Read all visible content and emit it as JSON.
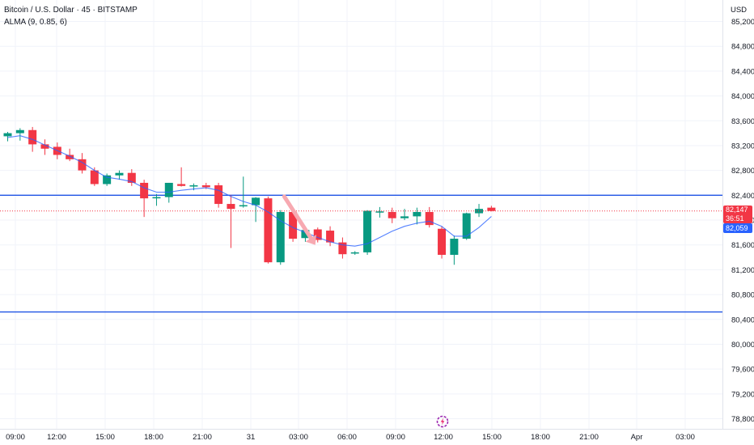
{
  "legend": {
    "title": "Bitcoin / U.S. Dollar · 45 · BITSTAMP",
    "indicator": "ALMA (9, 0.85, 6)"
  },
  "currency": "USD",
  "last_price": {
    "price": "82,147",
    "countdown": "36:51",
    "value": 82147
  },
  "alma_price": {
    "label": "82,059",
    "value": 82059
  },
  "colors": {
    "up": "#089981",
    "down": "#f23645",
    "alma": "#2962ff",
    "hline": "#1e53e5",
    "arrow": "#f7a9b1",
    "grid": "#f0f3fa",
    "text": "#131722"
  },
  "chart_data": {
    "type": "candlestick",
    "title": "Bitcoin / U.S. Dollar · 45 · BITSTAMP",
    "y_ticks": [
      85200,
      84800,
      84400,
      84000,
      83600,
      83200,
      82800,
      82400,
      82000,
      81600,
      81200,
      80800,
      80400,
      80000,
      79600,
      79200,
      78800
    ],
    "y_tick_labels": [
      "85,200",
      "84,800",
      "84,400",
      "84,000",
      "83,600",
      "83,200",
      "82,800",
      "82,400",
      "82,000",
      "81,600",
      "81,200",
      "80,800",
      "80,400",
      "80,000",
      "79,600",
      "79,200",
      "78,800"
    ],
    "x_tick_labels": [
      "09:00",
      "12:00",
      "15:00",
      "18:00",
      "21:00",
      "31",
      "03:00",
      "06:00",
      "09:00",
      "12:00",
      "15:00",
      "18:00",
      "21:00",
      "Apr",
      "03:00"
    ],
    "ylim": [
      78650,
      85350
    ],
    "horizontal_lines": [
      82400,
      80520
    ],
    "candles": [
      {
        "o": 83350,
        "h": 83420,
        "l": 83270,
        "c": 83400
      },
      {
        "o": 83400,
        "h": 83480,
        "l": 83280,
        "c": 83450
      },
      {
        "o": 83450,
        "h": 83500,
        "l": 83100,
        "c": 83220
      },
      {
        "o": 83220,
        "h": 83300,
        "l": 83050,
        "c": 83150
      },
      {
        "o": 83180,
        "h": 83250,
        "l": 82980,
        "c": 83050
      },
      {
        "o": 83050,
        "h": 83150,
        "l": 82950,
        "c": 82980
      },
      {
        "o": 82980,
        "h": 83080,
        "l": 82750,
        "c": 82800
      },
      {
        "o": 82800,
        "h": 82850,
        "l": 82550,
        "c": 82580
      },
      {
        "o": 82580,
        "h": 82750,
        "l": 82550,
        "c": 82720
      },
      {
        "o": 82720,
        "h": 82800,
        "l": 82650,
        "c": 82760
      },
      {
        "o": 82760,
        "h": 82820,
        "l": 82550,
        "c": 82600
      },
      {
        "o": 82600,
        "h": 82650,
        "l": 82050,
        "c": 82350
      },
      {
        "o": 82350,
        "h": 82420,
        "l": 82230,
        "c": 82370
      },
      {
        "o": 82370,
        "h": 82600,
        "l": 82280,
        "c": 82600
      },
      {
        "o": 82580,
        "h": 82850,
        "l": 82540,
        "c": 82550
      },
      {
        "o": 82550,
        "h": 82590,
        "l": 82480,
        "c": 82560
      },
      {
        "o": 82560,
        "h": 82600,
        "l": 82500,
        "c": 82530
      },
      {
        "o": 82560,
        "h": 82600,
        "l": 82200,
        "c": 82260
      },
      {
        "o": 82260,
        "h": 82400,
        "l": 81550,
        "c": 82180
      },
      {
        "o": 82230,
        "h": 82700,
        "l": 82200,
        "c": 82240
      },
      {
        "o": 82240,
        "h": 82370,
        "l": 81970,
        "c": 82360
      },
      {
        "o": 82350,
        "h": 82380,
        "l": 81300,
        "c": 81320
      },
      {
        "o": 81320,
        "h": 82160,
        "l": 81280,
        "c": 82130
      },
      {
        "o": 82130,
        "h": 82160,
        "l": 81650,
        "c": 81700
      },
      {
        "o": 81710,
        "h": 81880,
        "l": 81650,
        "c": 81840
      },
      {
        "o": 81850,
        "h": 81880,
        "l": 81640,
        "c": 81680
      },
      {
        "o": 81830,
        "h": 81900,
        "l": 81580,
        "c": 81640
      },
      {
        "o": 81640,
        "h": 81720,
        "l": 81380,
        "c": 81450
      },
      {
        "o": 81470,
        "h": 81500,
        "l": 81440,
        "c": 81480
      },
      {
        "o": 81480,
        "h": 82160,
        "l": 81440,
        "c": 82150
      },
      {
        "o": 82130,
        "h": 82210,
        "l": 82040,
        "c": 82140
      },
      {
        "o": 82130,
        "h": 82200,
        "l": 81950,
        "c": 82030
      },
      {
        "o": 82030,
        "h": 82180,
        "l": 82000,
        "c": 82060
      },
      {
        "o": 82060,
        "h": 82200,
        "l": 81930,
        "c": 82130
      },
      {
        "o": 82130,
        "h": 82210,
        "l": 81880,
        "c": 81920
      },
      {
        "o": 81860,
        "h": 81900,
        "l": 81380,
        "c": 81440
      },
      {
        "o": 81440,
        "h": 81750,
        "l": 81280,
        "c": 81700
      },
      {
        "o": 81700,
        "h": 82120,
        "l": 81680,
        "c": 82110
      },
      {
        "o": 82110,
        "h": 82260,
        "l": 82050,
        "c": 82180
      },
      {
        "o": 82200,
        "h": 82230,
        "l": 82140,
        "c": 82147
      }
    ],
    "alma": [
      83330,
      83360,
      83300,
      83210,
      83120,
      83030,
      82930,
      82800,
      82690,
      82660,
      82620,
      82520,
      82450,
      82450,
      82480,
      82500,
      82520,
      82480,
      82380,
      82300,
      82240,
      82130,
      81990,
      81880,
      81800,
      81720,
      81650,
      81600,
      81580,
      81620,
      81720,
      81820,
      81900,
      81950,
      81980,
      81900,
      81740,
      81740,
      81880,
      82059
    ],
    "arrow": {
      "from": [
        82380,
        22.3
      ],
      "to": [
        81600,
        24.8
      ]
    }
  }
}
